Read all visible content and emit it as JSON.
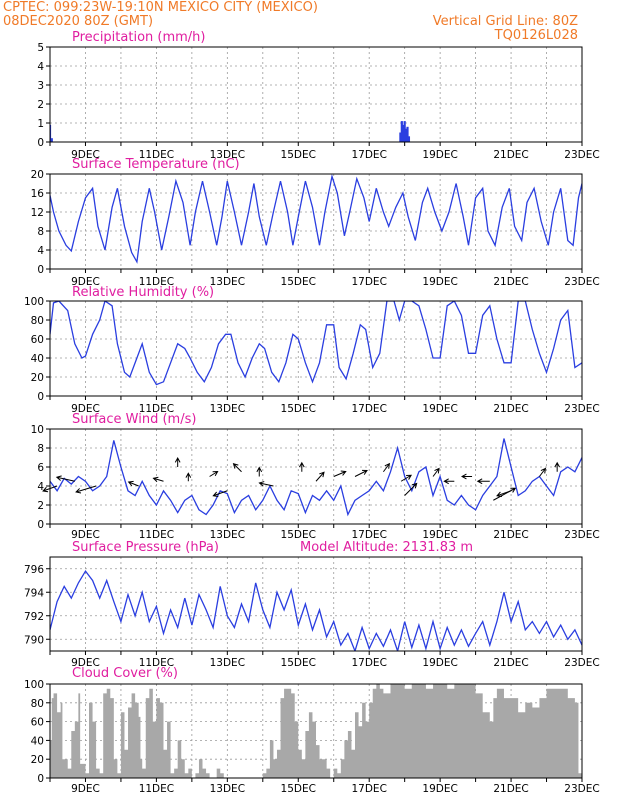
{
  "header": {
    "line1_left": "CPTEC:   099:23W-19:10N   MEXICO CITY (MEXICO)",
    "line2_left": "08DEC2020 80Z (GMT)",
    "line2_right": "Vertical Grid Line: 80Z",
    "line3_right": "TQ0126L028"
  },
  "colors": {
    "header": "#f07a28",
    "panel_title": "#e01ea0",
    "series": "#2a3ee0",
    "cloud": "#a8a8a8"
  },
  "x_axis": {
    "start_day": 8,
    "end_day": 23,
    "tick_days": [
      9,
      11,
      13,
      15,
      17,
      19,
      21,
      23
    ],
    "tick_labels": [
      "9DEC",
      "11DEC",
      "13DEC",
      "15DEC",
      "17DEC",
      "19DEC",
      "21DEC",
      "23DEC"
    ]
  },
  "chart_data": [
    {
      "type": "bar",
      "title": "Precipitation (mm/h)",
      "ylim": [
        0,
        5
      ],
      "yticks": [
        "0",
        "1",
        "2",
        "3",
        "4",
        "5"
      ],
      "grid": true,
      "x": [
        8.0,
        8.05,
        17.88,
        17.92,
        17.96,
        18.0,
        18.04,
        18.08,
        18.12
      ],
      "values": [
        0.9,
        0.2,
        0.5,
        1.1,
        0.9,
        1.1,
        0.7,
        0.8,
        0.3
      ]
    },
    {
      "type": "line",
      "title": "Surface Temperature (nC)",
      "ylim": [
        0,
        20
      ],
      "yticks": [
        "0",
        "4",
        "8",
        "12",
        "16",
        "20"
      ],
      "grid": true,
      "x": [
        8.0,
        8.1,
        8.25,
        8.45,
        8.6,
        8.8,
        9.0,
        9.2,
        9.35,
        9.55,
        9.75,
        9.9,
        10.1,
        10.3,
        10.45,
        10.6,
        10.8,
        10.95,
        11.15,
        11.35,
        11.55,
        11.75,
        11.95,
        12.1,
        12.3,
        12.5,
        12.7,
        12.85,
        13.0,
        13.2,
        13.4,
        13.6,
        13.75,
        13.9,
        14.1,
        14.3,
        14.5,
        14.7,
        14.85,
        15.0,
        15.2,
        15.4,
        15.6,
        15.75,
        15.95,
        16.1,
        16.3,
        16.45,
        16.65,
        16.85,
        17.0,
        17.2,
        17.4,
        17.55,
        17.75,
        17.95,
        18.1,
        18.3,
        18.5,
        18.65,
        18.85,
        19.05,
        19.25,
        19.45,
        19.65,
        19.8,
        20.0,
        20.2,
        20.35,
        20.55,
        20.75,
        20.95,
        21.1,
        21.3,
        21.45,
        21.65,
        21.85,
        22.05,
        22.2,
        22.4,
        22.6,
        22.75,
        22.9,
        23.0
      ],
      "values": [
        15.5,
        12,
        8,
        5,
        3.8,
        10,
        15,
        17,
        9,
        4,
        13,
        17,
        9,
        3.5,
        1.5,
        10,
        17,
        12,
        4,
        11,
        18.5,
        14,
        5,
        12,
        18.5,
        12,
        5,
        11,
        18.5,
        12,
        5,
        12,
        18,
        11,
        5,
        12,
        18.5,
        12,
        5,
        11,
        18.5,
        13,
        5,
        12,
        19.5,
        16,
        7,
        12,
        19,
        15,
        10,
        17,
        12,
        9,
        13,
        16,
        11,
        6,
        14,
        17,
        12,
        8,
        12,
        18,
        11,
        5,
        15,
        17,
        8,
        5,
        13,
        17,
        9,
        6,
        14,
        17,
        10,
        5,
        12,
        17,
        6,
        5,
        15,
        18
      ]
    },
    {
      "type": "line",
      "title": "Relative Humidity (%)",
      "ylim": [
        0,
        100
      ],
      "yticks": [
        "0",
        "20",
        "40",
        "60",
        "80",
        "100"
      ],
      "grid": true,
      "x": [
        8.0,
        8.1,
        8.25,
        8.5,
        8.7,
        8.9,
        9.0,
        9.2,
        9.4,
        9.55,
        9.75,
        9.9,
        10.1,
        10.25,
        10.45,
        10.6,
        10.8,
        11.0,
        11.2,
        11.4,
        11.6,
        11.8,
        11.95,
        12.15,
        12.35,
        12.55,
        12.75,
        12.95,
        13.1,
        13.3,
        13.5,
        13.7,
        13.9,
        14.05,
        14.25,
        14.45,
        14.65,
        14.85,
        15.0,
        15.2,
        15.4,
        15.6,
        15.8,
        16.0,
        16.15,
        16.35,
        16.55,
        16.75,
        16.9,
        17.1,
        17.3,
        17.5,
        17.7,
        17.85,
        18.0,
        18.2,
        18.4,
        18.6,
        18.8,
        19.0,
        19.2,
        19.4,
        19.6,
        19.8,
        20.0,
        20.2,
        20.4,
        20.6,
        20.8,
        21.0,
        21.2,
        21.4,
        21.6,
        21.8,
        22.0,
        22.2,
        22.4,
        22.6,
        22.8,
        23.0
      ],
      "values": [
        65,
        98,
        100,
        90,
        55,
        40,
        42,
        65,
        80,
        100,
        95,
        55,
        25,
        20,
        40,
        55,
        25,
        12,
        15,
        35,
        55,
        50,
        40,
        25,
        15,
        30,
        55,
        65,
        65,
        35,
        20,
        40,
        55,
        50,
        25,
        15,
        35,
        65,
        60,
        35,
        15,
        35,
        75,
        75,
        30,
        18,
        45,
        75,
        70,
        30,
        45,
        100,
        100,
        80,
        100,
        100,
        95,
        70,
        40,
        40,
        95,
        100,
        85,
        45,
        45,
        85,
        95,
        60,
        35,
        35,
        100,
        100,
        70,
        45,
        25,
        50,
        80,
        90,
        30,
        35
      ]
    },
    {
      "type": "line",
      "title": "Surface Wind (m/s)",
      "ylim": [
        0,
        10
      ],
      "yticks": [
        "0",
        "2",
        "4",
        "6",
        "8",
        "10"
      ],
      "grid": true,
      "x": [
        8.0,
        8.2,
        8.4,
        8.6,
        8.8,
        9.0,
        9.2,
        9.4,
        9.6,
        9.8,
        10.0,
        10.2,
        10.4,
        10.6,
        10.8,
        11.0,
        11.2,
        11.4,
        11.6,
        11.8,
        12.0,
        12.2,
        12.4,
        12.6,
        12.8,
        13.0,
        13.2,
        13.4,
        13.6,
        13.8,
        14.0,
        14.2,
        14.4,
        14.6,
        14.8,
        15.0,
        15.2,
        15.4,
        15.6,
        15.8,
        16.0,
        16.2,
        16.4,
        16.6,
        16.8,
        17.0,
        17.2,
        17.4,
        17.6,
        17.8,
        18.0,
        18.2,
        18.4,
        18.6,
        18.8,
        19.0,
        19.2,
        19.4,
        19.6,
        19.8,
        20.0,
        20.2,
        20.4,
        20.6,
        20.8,
        21.0,
        21.2,
        21.4,
        21.6,
        21.8,
        22.0,
        22.2,
        22.4,
        22.6,
        22.8,
        23.0
      ],
      "values": [
        4.5,
        3.5,
        4.8,
        4.2,
        5,
        4.5,
        3.5,
        4,
        5,
        8.8,
        6,
        3.5,
        3,
        4.5,
        3,
        2,
        3.5,
        2.5,
        1.2,
        2.5,
        3,
        1.5,
        1,
        2,
        3.5,
        3.2,
        1.2,
        2.5,
        3,
        1.5,
        2.5,
        4,
        2.5,
        1.5,
        3.5,
        3.2,
        1.2,
        3,
        2.5,
        3.5,
        2.5,
        4,
        1,
        2.5,
        3,
        3.5,
        4.5,
        3.5,
        5.5,
        8,
        5,
        3.5,
        5.5,
        6,
        3,
        5,
        2.5,
        2,
        3,
        2,
        1.5,
        3,
        4,
        5,
        9,
        6,
        3,
        3.5,
        4.5,
        5,
        4,
        3,
        5.5,
        6,
        5.5,
        7
      ]
    },
    {
      "type": "line",
      "title": "Surface Pressure (hPa)",
      "annotation": "Model Altitude: 2131.83 m",
      "ylim": [
        789,
        797
      ],
      "yticks": [
        "790",
        "792",
        "794",
        "796"
      ],
      "grid": true,
      "x": [
        8.0,
        8.2,
        8.4,
        8.6,
        8.8,
        9.0,
        9.2,
        9.4,
        9.6,
        9.8,
        10.0,
        10.2,
        10.4,
        10.6,
        10.8,
        11.0,
        11.2,
        11.4,
        11.6,
        11.8,
        12.0,
        12.2,
        12.4,
        12.6,
        12.8,
        13.0,
        13.2,
        13.4,
        13.6,
        13.8,
        14.0,
        14.2,
        14.4,
        14.6,
        14.8,
        15.0,
        15.2,
        15.4,
        15.6,
        15.8,
        16.0,
        16.2,
        16.4,
        16.6,
        16.8,
        17.0,
        17.2,
        17.4,
        17.6,
        17.8,
        18.0,
        18.2,
        18.4,
        18.6,
        18.8,
        19.0,
        19.2,
        19.4,
        19.6,
        19.8,
        20.0,
        20.2,
        20.4,
        20.6,
        20.8,
        21.0,
        21.2,
        21.4,
        21.6,
        21.8,
        22.0,
        22.2,
        22.4,
        22.6,
        22.8,
        23.0
      ],
      "values": [
        790.8,
        793.2,
        794.5,
        793.5,
        794.8,
        795.8,
        795,
        793.5,
        795,
        793.2,
        791.5,
        793.8,
        792,
        794,
        791.5,
        792.8,
        790.5,
        792.5,
        791,
        793.5,
        791.2,
        793.8,
        792.5,
        791,
        794.5,
        792,
        791,
        793,
        791.5,
        794.8,
        792.5,
        791,
        794,
        792.5,
        794.2,
        791.2,
        793,
        790.8,
        792.5,
        790.2,
        791.5,
        789.5,
        790.5,
        789,
        791,
        789.2,
        790.5,
        789.4,
        790.8,
        789,
        791.5,
        789.3,
        791.2,
        789.2,
        791.5,
        789.2,
        791,
        789.5,
        790.8,
        789.4,
        790.5,
        791.5,
        789.5,
        791.5,
        794,
        791.5,
        793.2,
        790.8,
        791.5,
        790.5,
        791.5,
        790.2,
        791.2,
        790,
        790.8,
        789.5
      ]
    },
    {
      "type": "area",
      "title": "Cloud Cover (%)",
      "ylim": [
        0,
        100
      ],
      "yticks": [
        "0",
        "20",
        "40",
        "60",
        "80",
        "100"
      ],
      "grid": true,
      "x": [
        8.0,
        8.05,
        8.1,
        8.2,
        8.3,
        8.35,
        8.5,
        8.6,
        8.7,
        8.8,
        8.85,
        9.0,
        9.1,
        9.2,
        9.3,
        9.4,
        9.5,
        9.6,
        9.7,
        9.8,
        9.9,
        10.0,
        10.1,
        10.2,
        10.3,
        10.4,
        10.5,
        10.55,
        10.6,
        10.7,
        10.8,
        10.9,
        11.0,
        11.1,
        11.2,
        11.3,
        11.4,
        11.5,
        11.6,
        11.7,
        11.8,
        11.9,
        12.0,
        12.1,
        12.2,
        12.3,
        12.4,
        12.5,
        12.6,
        12.7,
        12.8,
        12.9,
        13.0,
        13.1,
        13.2,
        13.4,
        13.6,
        13.8,
        14.0,
        14.1,
        14.2,
        14.3,
        14.4,
        14.5,
        14.6,
        14.7,
        14.8,
        14.9,
        15.0,
        15.1,
        15.2,
        15.3,
        15.4,
        15.5,
        15.6,
        15.7,
        15.8,
        15.9,
        16.0,
        16.1,
        16.2,
        16.3,
        16.4,
        16.5,
        16.6,
        16.7,
        16.8,
        16.9,
        17.0,
        17.1,
        17.2,
        17.3,
        17.4,
        17.6,
        17.8,
        18.0,
        18.2,
        18.4,
        18.6,
        18.8,
        19.0,
        19.2,
        19.4,
        19.6,
        19.8,
        20.0,
        20.2,
        20.4,
        20.5,
        20.6,
        20.8,
        21.0,
        21.2,
        21.4,
        21.6,
        21.8,
        22.0,
        22.2,
        22.4,
        22.6,
        22.8,
        22.9,
        23.0
      ],
      "values": [
        40,
        85,
        90,
        70,
        80,
        20,
        10,
        50,
        60,
        90,
        15,
        5,
        80,
        60,
        10,
        5,
        90,
        95,
        85,
        20,
        5,
        70,
        30,
        75,
        90,
        80,
        65,
        20,
        10,
        85,
        95,
        60,
        85,
        80,
        30,
        60,
        5,
        10,
        40,
        20,
        5,
        10,
        0,
        5,
        20,
        10,
        5,
        0,
        0,
        10,
        5,
        0,
        0,
        0,
        0,
        0,
        0,
        0,
        5,
        10,
        40,
        20,
        30,
        85,
        95,
        95,
        90,
        60,
        30,
        20,
        50,
        70,
        60,
        35,
        20,
        20,
        10,
        0,
        10,
        5,
        20,
        40,
        50,
        30,
        70,
        55,
        80,
        60,
        80,
        95,
        100,
        95,
        90,
        100,
        100,
        95,
        100,
        100,
        95,
        100,
        100,
        95,
        100,
        100,
        100,
        90,
        70,
        60,
        85,
        95,
        85,
        85,
        70,
        80,
        75,
        85,
        95,
        95,
        95,
        85,
        80,
        5,
        0
      ]
    }
  ]
}
